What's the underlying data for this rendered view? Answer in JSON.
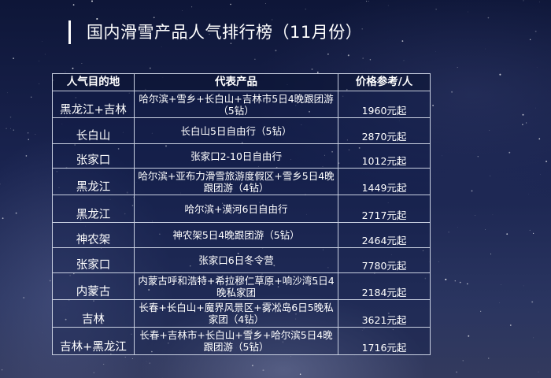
{
  "title": "国内滑雪产品人气排行榜（11月份）",
  "table": {
    "headers": [
      "人气目的地",
      "代表产品",
      "价格参考/人"
    ],
    "rows": [
      {
        "destination": "黑龙江+吉林",
        "product": "哈尔滨+雪乡+长白山+吉林市5日4晚跟团游（5钻）",
        "price": "1960元起"
      },
      {
        "destination": "长白山",
        "product": "长白山5日自由行（5钻）",
        "price": "2870元起"
      },
      {
        "destination": "张家口",
        "product": "张家口2-10日自由行",
        "price": "1012元起"
      },
      {
        "destination": "黑龙江",
        "product": "哈尔滨+亚布力滑雪旅游度假区+雪乡5日4晚跟团游（4钻）",
        "price": "1449元起"
      },
      {
        "destination": "黑龙江",
        "product": "哈尔滨+漠河6日自由行",
        "price": "2717元起"
      },
      {
        "destination": "神农架",
        "product": "神农架5日4晚跟团游（5钻）",
        "price": "2464元起"
      },
      {
        "destination": "张家口",
        "product": "张家口6日冬令营",
        "price": "7780元起"
      },
      {
        "destination": "内蒙古",
        "product": "内蒙古呼和浩特+希拉穆仁草原+响沙湾5日4晚私家团",
        "price": "2184元起"
      },
      {
        "destination": "吉林",
        "product": "长春+长白山+魔界风景区+雾凇岛6日5晚私家团（4钻）",
        "price": "3621元起"
      },
      {
        "destination": "吉林+黑龙江",
        "product": "长春+吉林市+长白山+雪乡+哈尔滨5日4晚跟团游（5钻）",
        "price": "1716元起"
      }
    ]
  },
  "colors": {
    "background": "#1a2450",
    "text": "#ffffff",
    "grid": "#c8cfe0"
  }
}
